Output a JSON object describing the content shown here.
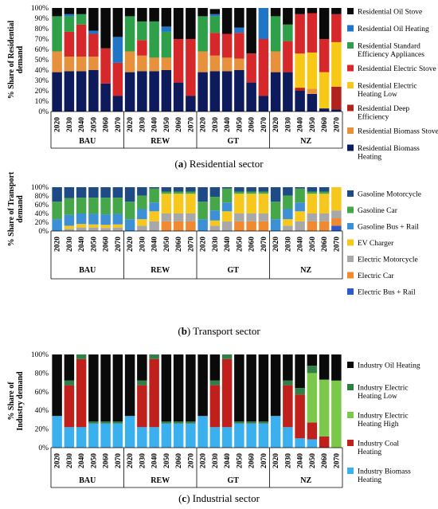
{
  "captions": [
    {
      "letter": "a",
      "text": " Residential sector"
    },
    {
      "letter": "b",
      "text": " Transport sector"
    },
    {
      "letter": "c",
      "text": " Industrial sector"
    }
  ],
  "chart_data": [
    {
      "type": "bar",
      "stacked": true,
      "title": "",
      "ylabel": "% Share of Residential demand",
      "ylim": [
        0,
        100
      ],
      "y_ticks": [
        "0%",
        "10%",
        "20%",
        "30%",
        "40%",
        "50%",
        "60%",
        "70%",
        "80%",
        "90%",
        "100%"
      ],
      "groups": [
        "BAU",
        "REW",
        "GT",
        "NZ"
      ],
      "x": [
        "2020",
        "2030",
        "2040",
        "2050",
        "2060",
        "2070"
      ],
      "legend_position": "right",
      "series": [
        {
          "name": "Residential Biomass Heating",
          "color": "#0d1a5c",
          "values": [
            [
              38,
              39,
              39,
              40,
              27,
              15
            ],
            [
              38,
              39,
              39,
              40,
              28,
              15
            ],
            [
              38,
              39,
              39,
              40,
              28,
              15
            ],
            [
              38,
              38,
              20,
              17,
              3,
              2
            ]
          ]
        },
        {
          "name": "Residential Biomass Stove",
          "color": "#e8913c",
          "values": [
            [
              20,
              14,
              14,
              13,
              0,
              0
            ],
            [
              20,
              15,
              13,
              12,
              0,
              0
            ],
            [
              20,
              15,
              13,
              11,
              0,
              0
            ],
            [
              20,
              0,
              0,
              5,
              0,
              0
            ]
          ]
        },
        {
          "name": "Residential Deep Efficiency",
          "color": "#b2221c",
          "values": [
            [
              0,
              0,
              0,
              0,
              0,
              0
            ],
            [
              0,
              0,
              0,
              0,
              0,
              0
            ],
            [
              0,
              0,
              0,
              0,
              0,
              0
            ],
            [
              0,
              0,
              3,
              0,
              0,
              22
            ]
          ]
        },
        {
          "name": "Residential Electric Heating Low",
          "color": "#f7c815",
          "values": [
            [
              0,
              0,
              0,
              0,
              0,
              0
            ],
            [
              0,
              0,
              0,
              0,
              0,
              0
            ],
            [
              0,
              0,
              0,
              0,
              0,
              0
            ],
            [
              0,
              0,
              33,
              35,
              35,
              43
            ]
          ]
        },
        {
          "name": "Residential Electric Stove",
          "color": "#d6282a",
          "values": [
            [
              0,
              24,
              31,
              22,
              34,
              32
            ],
            [
              0,
              15,
              0,
              0,
              42,
              55
            ],
            [
              0,
              22,
              23,
              25,
              28,
              55
            ],
            [
              0,
              30,
              38,
              38,
              32,
              27
            ]
          ]
        },
        {
          "name": "Residential Standard Efficiency Appliances",
          "color": "#2ea04a",
          "values": [
            [
              34,
              15,
              10,
              0,
              0,
              0
            ],
            [
              34,
              18,
              35,
              25,
              0,
              0
            ],
            [
              34,
              16,
              0,
              0,
              0,
              0
            ],
            [
              34,
              16,
              0,
              0,
              0,
              0
            ]
          ]
        },
        {
          "name": "Residential Oil Heating",
          "color": "#2175c6",
          "values": [
            [
              0,
              2,
              0,
              3,
              0,
              25
            ],
            [
              0,
              0,
              0,
              5,
              0,
              0
            ],
            [
              0,
              2,
              0,
              5,
              0,
              30
            ],
            [
              0,
              0,
              0,
              0,
              0,
              0
            ]
          ]
        },
        {
          "name": "Residential Oil Stove",
          "color": "#0a0a0a",
          "values": [
            [
              8,
              6,
              6,
              22,
              39,
              28
            ],
            [
              8,
              13,
              13,
              18,
              30,
              30
            ],
            [
              8,
              5,
              25,
              19,
              44,
              0
            ],
            [
              8,
              16,
              6,
              5,
              30,
              6
            ]
          ]
        }
      ]
    },
    {
      "type": "bar",
      "stacked": true,
      "title": "",
      "ylabel": "% Share of Transport demand",
      "ylim": [
        0,
        100
      ],
      "y_ticks": [
        "0%",
        "20%",
        "40%",
        "60%",
        "80%",
        "100%"
      ],
      "groups": [
        "BAU",
        "REW",
        "GT",
        "NZ"
      ],
      "x": [
        "2020",
        "2030",
        "2040",
        "2050",
        "2060",
        "2070"
      ],
      "legend_position": "right",
      "series": [
        {
          "name": "Electric Bus + Rail",
          "color": "#2c5ac8",
          "values": [
            [
              0,
              0,
              0,
              0,
              0,
              0
            ],
            [
              0,
              0,
              0,
              0,
              0,
              0
            ],
            [
              0,
              0,
              0,
              0,
              0,
              0
            ],
            [
              0,
              0,
              0,
              0,
              0,
              12
            ]
          ]
        },
        {
          "name": "Electric Car",
          "color": "#f08a30",
          "values": [
            [
              0,
              0,
              0,
              0,
              0,
              0
            ],
            [
              0,
              0,
              0,
              22,
              22,
              22
            ],
            [
              0,
              0,
              0,
              22,
              22,
              22
            ],
            [
              0,
              0,
              0,
              22,
              22,
              17
            ]
          ]
        },
        {
          "name": "Electric Motorcycle",
          "color": "#a8a8a8",
          "values": [
            [
              0,
              5,
              8,
              8,
              7,
              8
            ],
            [
              0,
              12,
              22,
              18,
              18,
              18
            ],
            [
              0,
              12,
              22,
              18,
              18,
              18
            ],
            [
              0,
              12,
              22,
              18,
              18,
              18
            ]
          ]
        },
        {
          "name": "EV Charger",
          "color": "#f6c81e",
          "values": [
            [
              0,
              7,
              8,
              7,
              7,
              7
            ],
            [
              0,
              15,
              23,
              45,
              45,
              45
            ],
            [
              0,
              12,
              23,
              45,
              45,
              45
            ],
            [
              0,
              15,
              23,
              45,
              45,
              53
            ]
          ]
        },
        {
          "name": "Gasoline Bus + Rail",
          "color": "#3d8fd6",
          "values": [
            [
              27,
              25,
              24,
              24,
              24,
              24
            ],
            [
              27,
              23,
              20,
              0,
              0,
              0
            ],
            [
              27,
              23,
              20,
              0,
              0,
              0
            ],
            [
              27,
              23,
              20,
              0,
              0,
              0
            ]
          ]
        },
        {
          "name": "Gasoline Car",
          "color": "#46a64a",
          "values": [
            [
              40,
              38,
              36,
              37,
              38,
              37
            ],
            [
              40,
              31,
              32,
              5,
              5,
              5
            ],
            [
              40,
              31,
              32,
              5,
              5,
              5
            ],
            [
              40,
              31,
              32,
              5,
              5,
              0
            ]
          ]
        },
        {
          "name": "Gasoline Motorcycle",
          "color": "#1e4a86",
          "values": [
            [
              33,
              25,
              24,
              24,
              24,
              24
            ],
            [
              33,
              19,
              3,
              10,
              10,
              10
            ],
            [
              33,
              22,
              3,
              10,
              10,
              10
            ],
            [
              33,
              19,
              3,
              10,
              10,
              0
            ]
          ]
        }
      ]
    },
    {
      "type": "bar",
      "stacked": true,
      "title": "",
      "ylabel": "% Share of Industry demand",
      "ylim": [
        0,
        100
      ],
      "y_ticks": [
        "0%",
        "20%",
        "40%",
        "60%",
        "80%",
        "100%"
      ],
      "groups": [
        "BAU",
        "REW",
        "GT",
        "NZ"
      ],
      "x": [
        "2020",
        "2030",
        "2040",
        "2050",
        "2060",
        "2070"
      ],
      "legend_position": "right",
      "series": [
        {
          "name": "Industry Biomass Heating",
          "color": "#3bb0ee",
          "values": [
            [
              34,
              22,
              22,
              26,
              26,
              26
            ],
            [
              34,
              22,
              22,
              26,
              26,
              26
            ],
            [
              34,
              22,
              22,
              26,
              26,
              26
            ],
            [
              34,
              22,
              10,
              9,
              0,
              0
            ]
          ]
        },
        {
          "name": "Industry Coal Heating",
          "color": "#c0201c",
          "values": [
            [
              0,
              45,
              73,
              0,
              0,
              0
            ],
            [
              0,
              45,
              73,
              0,
              0,
              0
            ],
            [
              0,
              45,
              73,
              0,
              0,
              0
            ],
            [
              0,
              45,
              47,
              18,
              12,
              0
            ]
          ]
        },
        {
          "name": "Industry Electric Heating High",
          "color": "#7cc84a",
          "values": [
            [
              0,
              0,
              0,
              0,
              0,
              0
            ],
            [
              0,
              0,
              0,
              0,
              0,
              0
            ],
            [
              0,
              0,
              0,
              0,
              0,
              0
            ],
            [
              0,
              0,
              0,
              53,
              61,
              72
            ]
          ]
        },
        {
          "name": "Industry Electric Heating Low",
          "color": "#2f7f46",
          "values": [
            [
              0,
              5,
              5,
              2,
              2,
              2
            ],
            [
              0,
              5,
              5,
              2,
              2,
              2
            ],
            [
              0,
              5,
              5,
              2,
              2,
              2
            ],
            [
              0,
              5,
              7,
              8,
              0,
              0
            ]
          ]
        },
        {
          "name": "Industry Oil Heating",
          "color": "#0a0a0a",
          "values": [
            [
              66,
              28,
              0,
              72,
              72,
              72
            ],
            [
              66,
              28,
              0,
              72,
              72,
              72
            ],
            [
              66,
              28,
              0,
              72,
              72,
              72
            ],
            [
              66,
              28,
              36,
              12,
              27,
              28
            ]
          ]
        }
      ]
    }
  ]
}
